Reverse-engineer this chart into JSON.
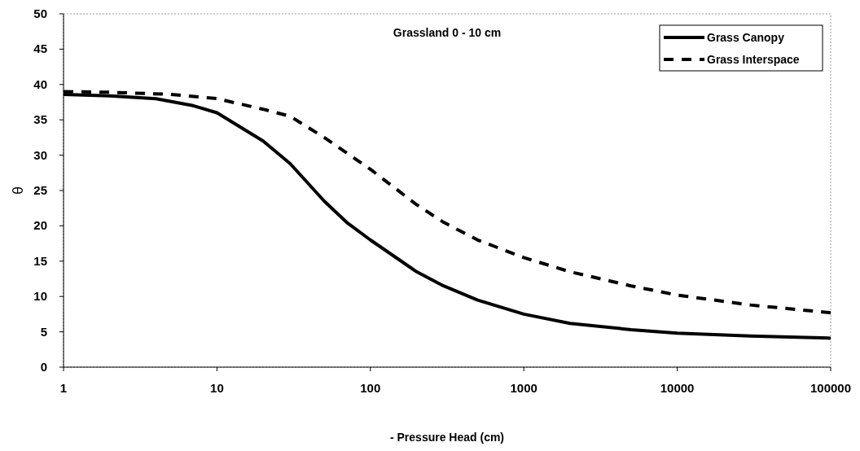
{
  "chart_data": {
    "type": "line",
    "title": "Grassland 0 - 10 cm",
    "xlabel": "- Pressure Head (cm)",
    "ylabel": "θ",
    "log": "x",
    "xlim": [
      1,
      100000
    ],
    "xticks": [
      1,
      10,
      100,
      1000,
      10000,
      100000
    ],
    "ylim": [
      0,
      50
    ],
    "yticks": [
      0,
      5,
      10,
      15,
      20,
      25,
      30,
      35,
      40,
      45,
      50
    ],
    "grid": false,
    "legend": "top right",
    "marker": "none",
    "series": [
      {
        "name": "Grass Canopy",
        "color": "#000000",
        "line_style": "solid",
        "x": [
          1,
          2,
          4,
          7,
          10,
          20,
          30,
          50,
          70,
          100,
          200,
          300,
          500,
          1000,
          2000,
          5000,
          10000,
          30000,
          100000
        ],
        "values": [
          38.6,
          38.4,
          38,
          37,
          36,
          32,
          28.8,
          23.5,
          20.5,
          18,
          13.5,
          11.5,
          9.5,
          7.5,
          6.2,
          5.3,
          4.8,
          4.4,
          4.1
        ]
      },
      {
        "name": "Grass Interspace",
        "color": "#000000",
        "line_style": "dashed",
        "x": [
          1,
          2,
          5,
          10,
          20,
          30,
          50,
          100,
          200,
          300,
          500,
          1000,
          2000,
          5000,
          10000,
          30000,
          100000
        ],
        "values": [
          39,
          38.9,
          38.6,
          38,
          36.5,
          35.5,
          32.5,
          28,
          23,
          20.5,
          18,
          15.5,
          13.5,
          11.5,
          10.2,
          8.8,
          7.7
        ]
      }
    ]
  }
}
